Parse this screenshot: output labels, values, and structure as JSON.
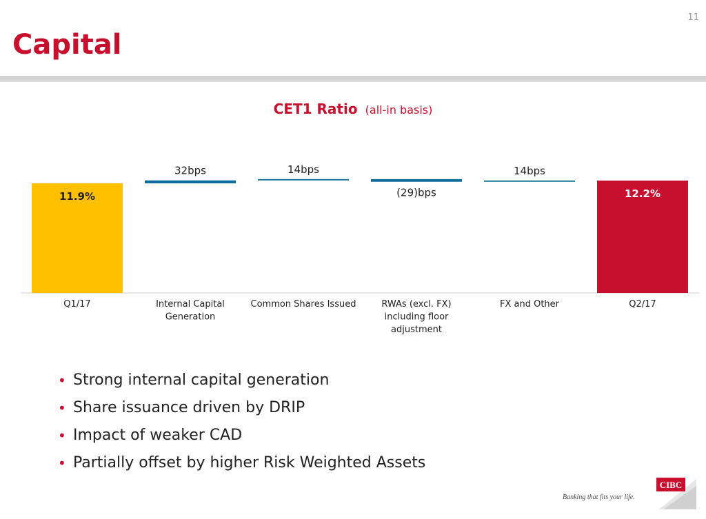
{
  "page_number": "11",
  "title": "Capital",
  "chart_title": {
    "main": "CET1 Ratio",
    "sub": "(all-in basis)"
  },
  "colors": {
    "brand_red": "#c8102e",
    "gold": "#ffc000",
    "teal": "#0e6d9a",
    "axis": "#cccccc"
  },
  "chart_data": {
    "type": "bar",
    "subtype": "waterfall",
    "title": "CET1 Ratio (all-in basis)",
    "categories": [
      "Q1/17",
      "Internal Capital Generation",
      "Common Shares Issued",
      "RWAs (excl. FX) including floor adjustment",
      "FX and Other",
      "Q2/17"
    ],
    "category_lines": [
      [
        "Q1/17"
      ],
      [
        "Internal Capital",
        "Generation"
      ],
      [
        "Common Shares Issued"
      ],
      [
        "RWAs (excl. FX)",
        "including floor",
        "adjustment"
      ],
      [
        "FX and Other"
      ],
      [
        "Q2/17"
      ]
    ],
    "kinds": [
      "total",
      "delta",
      "delta",
      "delta",
      "delta",
      "total"
    ],
    "values_bps": [
      1190,
      32,
      14,
      -29,
      14,
      1220
    ],
    "labels": [
      "11.9%",
      "32bps",
      "14bps",
      "(29)bps",
      "14bps",
      "12.2%"
    ],
    "bar_colors": [
      "#ffc000",
      "#0e6d9a",
      "#0e6d9a",
      "#0e6d9a",
      "#0e6d9a",
      "#c8102e"
    ]
  },
  "bullets": [
    "Strong internal capital generation",
    "Share issuance driven by DRIP",
    "Impact of weaker CAD",
    "Partially offset by higher Risk Weighted Assets"
  ],
  "footer": {
    "tagline": "Banking that fits your life.",
    "logo_text": "CIBC"
  }
}
